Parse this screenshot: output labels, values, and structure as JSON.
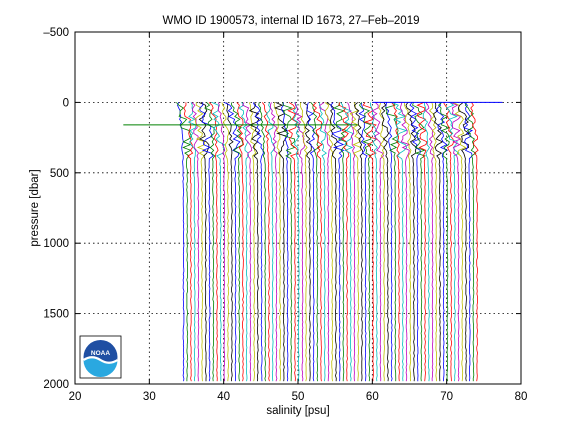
{
  "chart_data": {
    "type": "line",
    "title": "WMO ID 1900573, internal ID 1673, 27–Feb–2019",
    "xlabel": "salinity [psu]",
    "ylabel": "pressure [dbar]",
    "xlim": [
      20,
      80
    ],
    "ylim": [
      -500,
      2000
    ],
    "y_reversed": true,
    "grid": true,
    "x_ticks": [
      20,
      30,
      40,
      50,
      60,
      70,
      80
    ],
    "y_ticks": [
      -500,
      0,
      500,
      1000,
      1500,
      2000
    ],
    "x_tick_labels": [
      "20",
      "30",
      "40",
      "50",
      "60",
      "70",
      "80"
    ],
    "y_tick_labels": [
      "–500",
      "0",
      "500",
      "1000",
      "1500",
      "2000"
    ],
    "series_colors": [
      "#0000ff",
      "#008000",
      "#ff0000",
      "#00bfbf",
      "#bf00bf",
      "#bfbf00",
      "#000000"
    ],
    "profile_offset_psu": 0.5,
    "profile_count": 80,
    "first_profile_surface_salinity": 33.8,
    "first_profile_deep_salinity": 34.6,
    "profile_max_pressure": 1980,
    "outliers": [
      {
        "pressure": 160,
        "salinity_from": 26.5,
        "salinity_to": 58.0,
        "color": "#008000"
      },
      {
        "pressure": 0,
        "salinity_from": 60.0,
        "salinity_to": 77.5,
        "color": "#0000ff"
      }
    ],
    "logo": "NOAA"
  }
}
